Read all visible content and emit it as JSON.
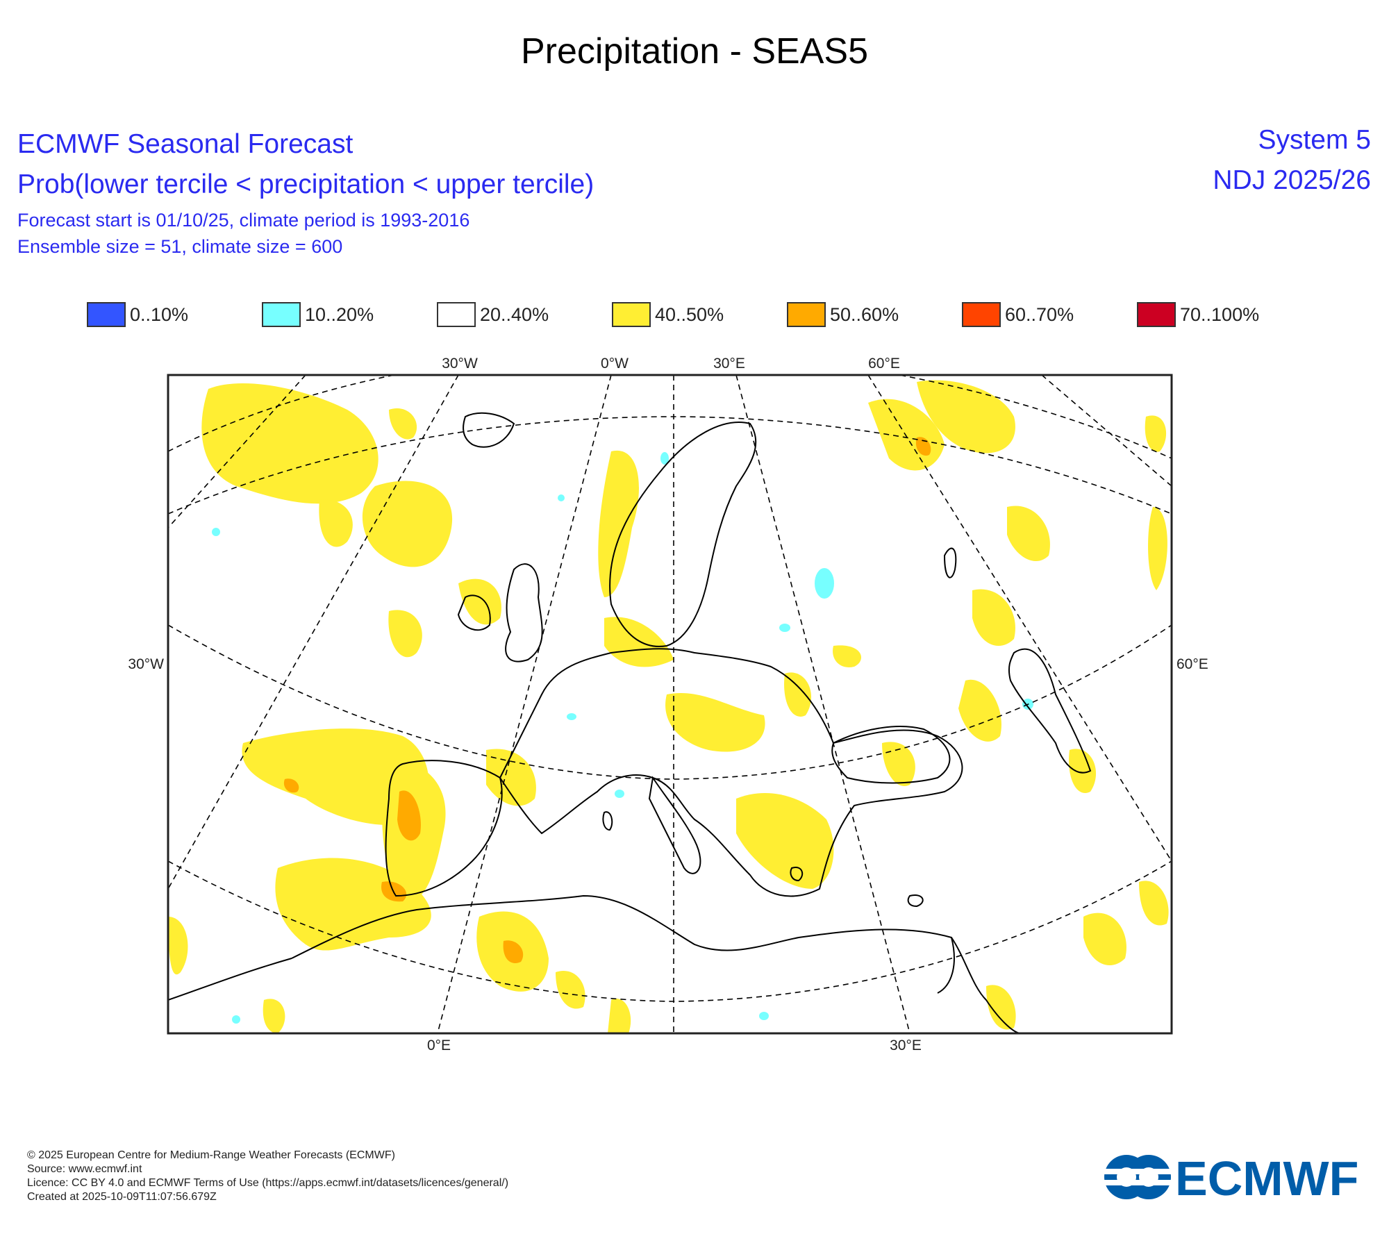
{
  "title": "Precipitation - SEAS5",
  "header": {
    "line1": "ECMWF Seasonal Forecast",
    "line2": "Prob(lower tercile < precipitation < upper tercile)",
    "line3": "Forecast start is 01/10/25, climate period is 1993-2016",
    "line4": "Ensemble size = 51, climate size = 600",
    "system": "System 5",
    "period": "NDJ 2025/26"
  },
  "legend": [
    {
      "label": "0..10%",
      "color": "#3355ff"
    },
    {
      "label": "10..20%",
      "color": "#77ffff"
    },
    {
      "label": "20..40%",
      "color": "#ffffff"
    },
    {
      "label": "40..50%",
      "color": "#ffee33"
    },
    {
      "label": "50..60%",
      "color": "#ffaa00"
    },
    {
      "label": "60..70%",
      "color": "#ff4400"
    },
    {
      "label": "70..100%",
      "color": "#cc0022"
    }
  ],
  "map": {
    "labels": {
      "top_30w": "30°W",
      "top_0w": "0°W",
      "top_30e": "30°E",
      "top_60e": "60°E",
      "left_30w": "30°W",
      "right_60e": "60°E",
      "bottom_0e": "0°E",
      "bottom_30e": "30°E"
    },
    "colors": {
      "prob_40_50": "#ffee33",
      "prob_50_60": "#ffaa00",
      "prob_10_20": "#77ffff",
      "frame": "#000000"
    }
  },
  "footer": {
    "copyright": "© 2025 European Centre for Medium-Range Weather Forecasts (ECMWF)",
    "source": "Source: www.ecmwf.int",
    "licence": "Licence: CC BY 4.0 and ECMWF Terms of Use (https://apps.ecmwf.int/datasets/licences/general/)",
    "created": "Created at 2025-10-09T11:07:56.679Z"
  },
  "logo": {
    "text": "ECMWF",
    "color": "#005da9"
  }
}
